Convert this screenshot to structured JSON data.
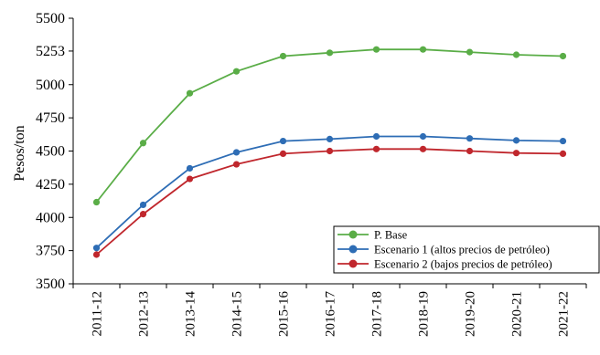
{
  "chart_data": {
    "type": "line",
    "title": "",
    "xlabel": "",
    "ylabel": "Pesos/ton",
    "categories": [
      "2011-12",
      "2012-13",
      "2013-14",
      "2014-15",
      "2015-16",
      "2016-17",
      "2017-18",
      "2018-19",
      "2019-20",
      "2020-21",
      "2021-22"
    ],
    "yticks": [
      3500,
      3750,
      4000,
      4250,
      4500,
      4750,
      5000,
      5253,
      5500
    ],
    "ylim": [
      3500,
      5500
    ],
    "grid": false,
    "legend_position": "bottom-right",
    "series": [
      {
        "name": "P. Base",
        "color": "#5aad47",
        "values": [
          4115,
          4560,
          4935,
          5100,
          5215,
          5240,
          5265,
          5265,
          5245,
          5225,
          5215
        ]
      },
      {
        "name": "Escenario 1 (altos precios de petróleo)",
        "color": "#2e6db5",
        "values": [
          3770,
          4095,
          4370,
          4490,
          4575,
          4590,
          4610,
          4610,
          4595,
          4580,
          4575
        ]
      },
      {
        "name": "Escenario 2 (bajos precios de petróleo)",
        "color": "#c0272d",
        "values": [
          3720,
          4025,
          4290,
          4400,
          4480,
          4500,
          4515,
          4515,
          4500,
          4485,
          4480
        ]
      }
    ]
  }
}
